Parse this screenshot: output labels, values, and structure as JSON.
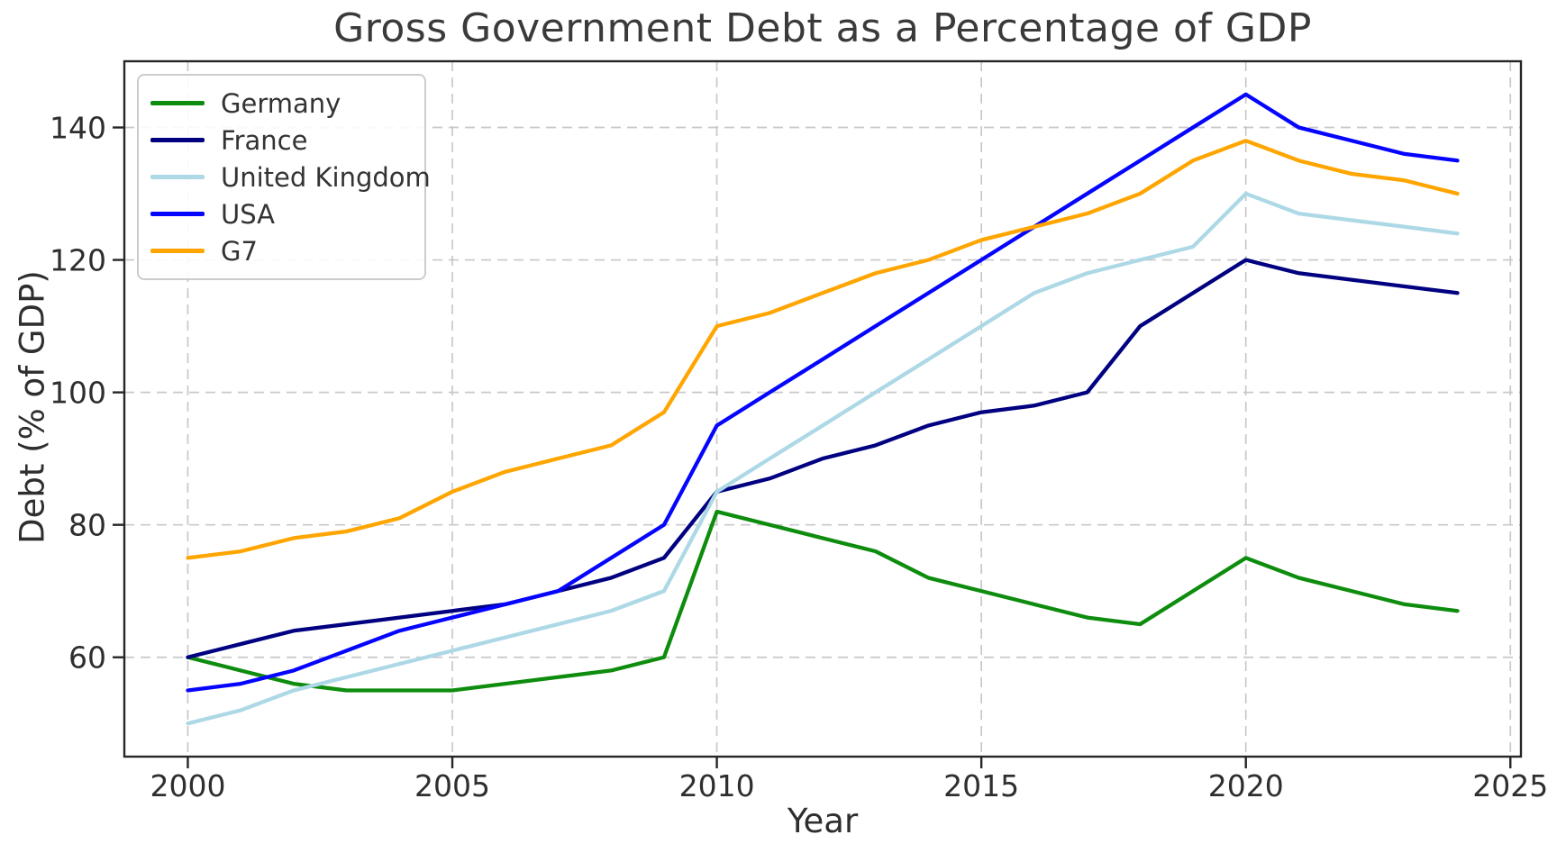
{
  "chart_data": {
    "type": "line",
    "title": "Gross Government Debt as a Percentage of GDP",
    "xlabel": "Year",
    "ylabel": "Debt (% of GDP)",
    "x": [
      2000,
      2001,
      2002,
      2003,
      2004,
      2005,
      2006,
      2007,
      2008,
      2009,
      2010,
      2011,
      2012,
      2013,
      2014,
      2015,
      2016,
      2017,
      2018,
      2019,
      2020,
      2021,
      2022,
      2023,
      2024
    ],
    "series": [
      {
        "name": "Germany",
        "color": "#0e8c0e",
        "values": [
          60,
          58,
          56,
          55,
          55,
          55,
          56,
          57,
          58,
          60,
          82,
          80,
          78,
          76,
          72,
          70,
          68,
          66,
          65,
          70,
          75,
          72,
          70,
          68,
          67
        ]
      },
      {
        "name": "France",
        "color": "#000080",
        "values": [
          60,
          62,
          64,
          65,
          66,
          67,
          68,
          70,
          72,
          75,
          85,
          87,
          90,
          92,
          95,
          97,
          98,
          100,
          110,
          115,
          120,
          118,
          117,
          116,
          115
        ]
      },
      {
        "name": "United Kingdom",
        "color": "#add8e6",
        "values": [
          50,
          52,
          55,
          57,
          59,
          61,
          63,
          65,
          67,
          70,
          85,
          90,
          95,
          100,
          105,
          110,
          115,
          118,
          120,
          122,
          130,
          127,
          126,
          125,
          124
        ]
      },
      {
        "name": "USA",
        "color": "#0505ff",
        "values": [
          55,
          56,
          58,
          61,
          64,
          66,
          68,
          70,
          75,
          80,
          95,
          100,
          105,
          110,
          115,
          120,
          125,
          130,
          135,
          140,
          145,
          140,
          138,
          136,
          135
        ]
      },
      {
        "name": "G7",
        "color": "#ffa500",
        "values": [
          75,
          76,
          78,
          79,
          81,
          85,
          88,
          90,
          92,
          97,
          110,
          112,
          115,
          118,
          120,
          123,
          125,
          127,
          130,
          135,
          138,
          135,
          133,
          132,
          130
        ]
      }
    ],
    "xticks": [
      2000,
      2005,
      2010,
      2015,
      2020,
      2025
    ],
    "yticks": [
      60,
      80,
      100,
      120,
      140
    ],
    "xlim": [
      1998.8,
      2025.2
    ],
    "ylim": [
      45,
      150
    ],
    "grid": true,
    "grid_style": "dashed",
    "legend_position": "upper-left",
    "colors": {
      "grid": "#c8c8c8",
      "spine": "#262626",
      "tick_text": "#2e2e2e",
      "title_text": "#3a3a3a"
    }
  }
}
